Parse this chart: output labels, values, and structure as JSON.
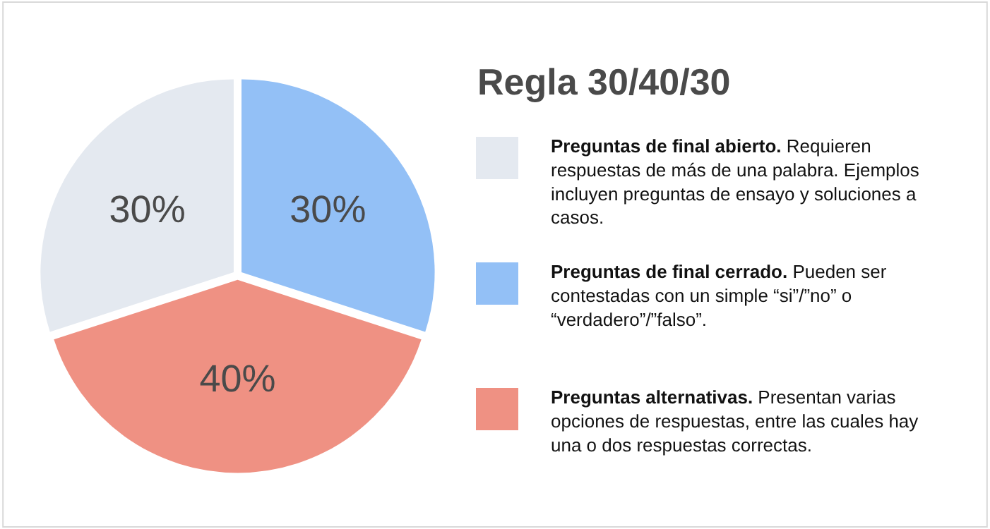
{
  "chart_data": {
    "type": "pie",
    "title": "Regla 30/40/30",
    "categories": [
      "Preguntas de final abierto.",
      "Preguntas de final cerrado.",
      "Preguntas alternativas."
    ],
    "values": [
      30,
      30,
      40
    ],
    "colors": [
      "#e4e9f0",
      "#93c0f6",
      "#ef9183"
    ],
    "value_labels": [
      "30%",
      "30%",
      "40%"
    ],
    "annotations": [
      "Requieren respuestas de más de una palabra. Ejemplos incluyen preguntas de ensayo y soluciones a casos.",
      "Pueden ser contestadas con un simple “si”/”no” o “verdadero”/”falso”.",
      "Presentan varias opciones de respuestas, entre las cuales hay una o dos respuestas correctas."
    ],
    "legend": "right"
  }
}
